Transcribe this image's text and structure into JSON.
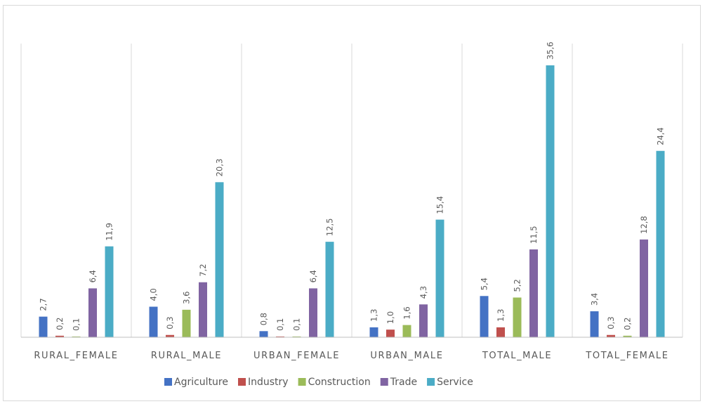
{
  "chart_data": {
    "type": "bar",
    "title": "",
    "xlabel": "",
    "ylabel": "",
    "ylim": [
      0,
      37
    ],
    "grid": false,
    "legend_position": "bottom",
    "categories": [
      "RURAL_FEMALE",
      "RURAL_MALE",
      "URBAN_FEMALE",
      "URBAN_MALE",
      "TOTAL_MALE",
      "TOTAL_FEMALE"
    ],
    "series": [
      {
        "name": "Agriculture",
        "color": "#4472c4",
        "values": [
          2.7,
          4.0,
          0.8,
          1.3,
          5.4,
          3.4
        ],
        "labels": [
          "2,7",
          "4,0",
          "0,8",
          "1,3",
          "5,4",
          "3,4"
        ]
      },
      {
        "name": "Industry",
        "color": "#c0504d",
        "values": [
          0.2,
          0.3,
          0.1,
          1.0,
          1.3,
          0.3
        ],
        "labels": [
          "0,2",
          "0,3",
          "0,1",
          "1,0",
          "1,3",
          "0,3"
        ]
      },
      {
        "name": "Construction",
        "color": "#9bbb59",
        "values": [
          0.1,
          3.6,
          0.1,
          1.6,
          5.2,
          0.2
        ],
        "labels": [
          "0,1",
          "3,6",
          "0,1",
          "1,6",
          "5,2",
          "0,2"
        ]
      },
      {
        "name": "Trade",
        "color": "#8064a2",
        "values": [
          6.4,
          7.2,
          6.4,
          4.3,
          11.5,
          12.8
        ],
        "labels": [
          "6,4",
          "7,2",
          "6,4",
          "4,3",
          "11,5",
          "12,8"
        ]
      },
      {
        "name": "Service",
        "color": "#4bacc6",
        "values": [
          11.9,
          20.3,
          12.5,
          15.4,
          35.6,
          24.4
        ],
        "labels": [
          "11,9",
          "20,3",
          "12,5",
          "15,4",
          "35,6",
          "24,4"
        ]
      }
    ]
  }
}
